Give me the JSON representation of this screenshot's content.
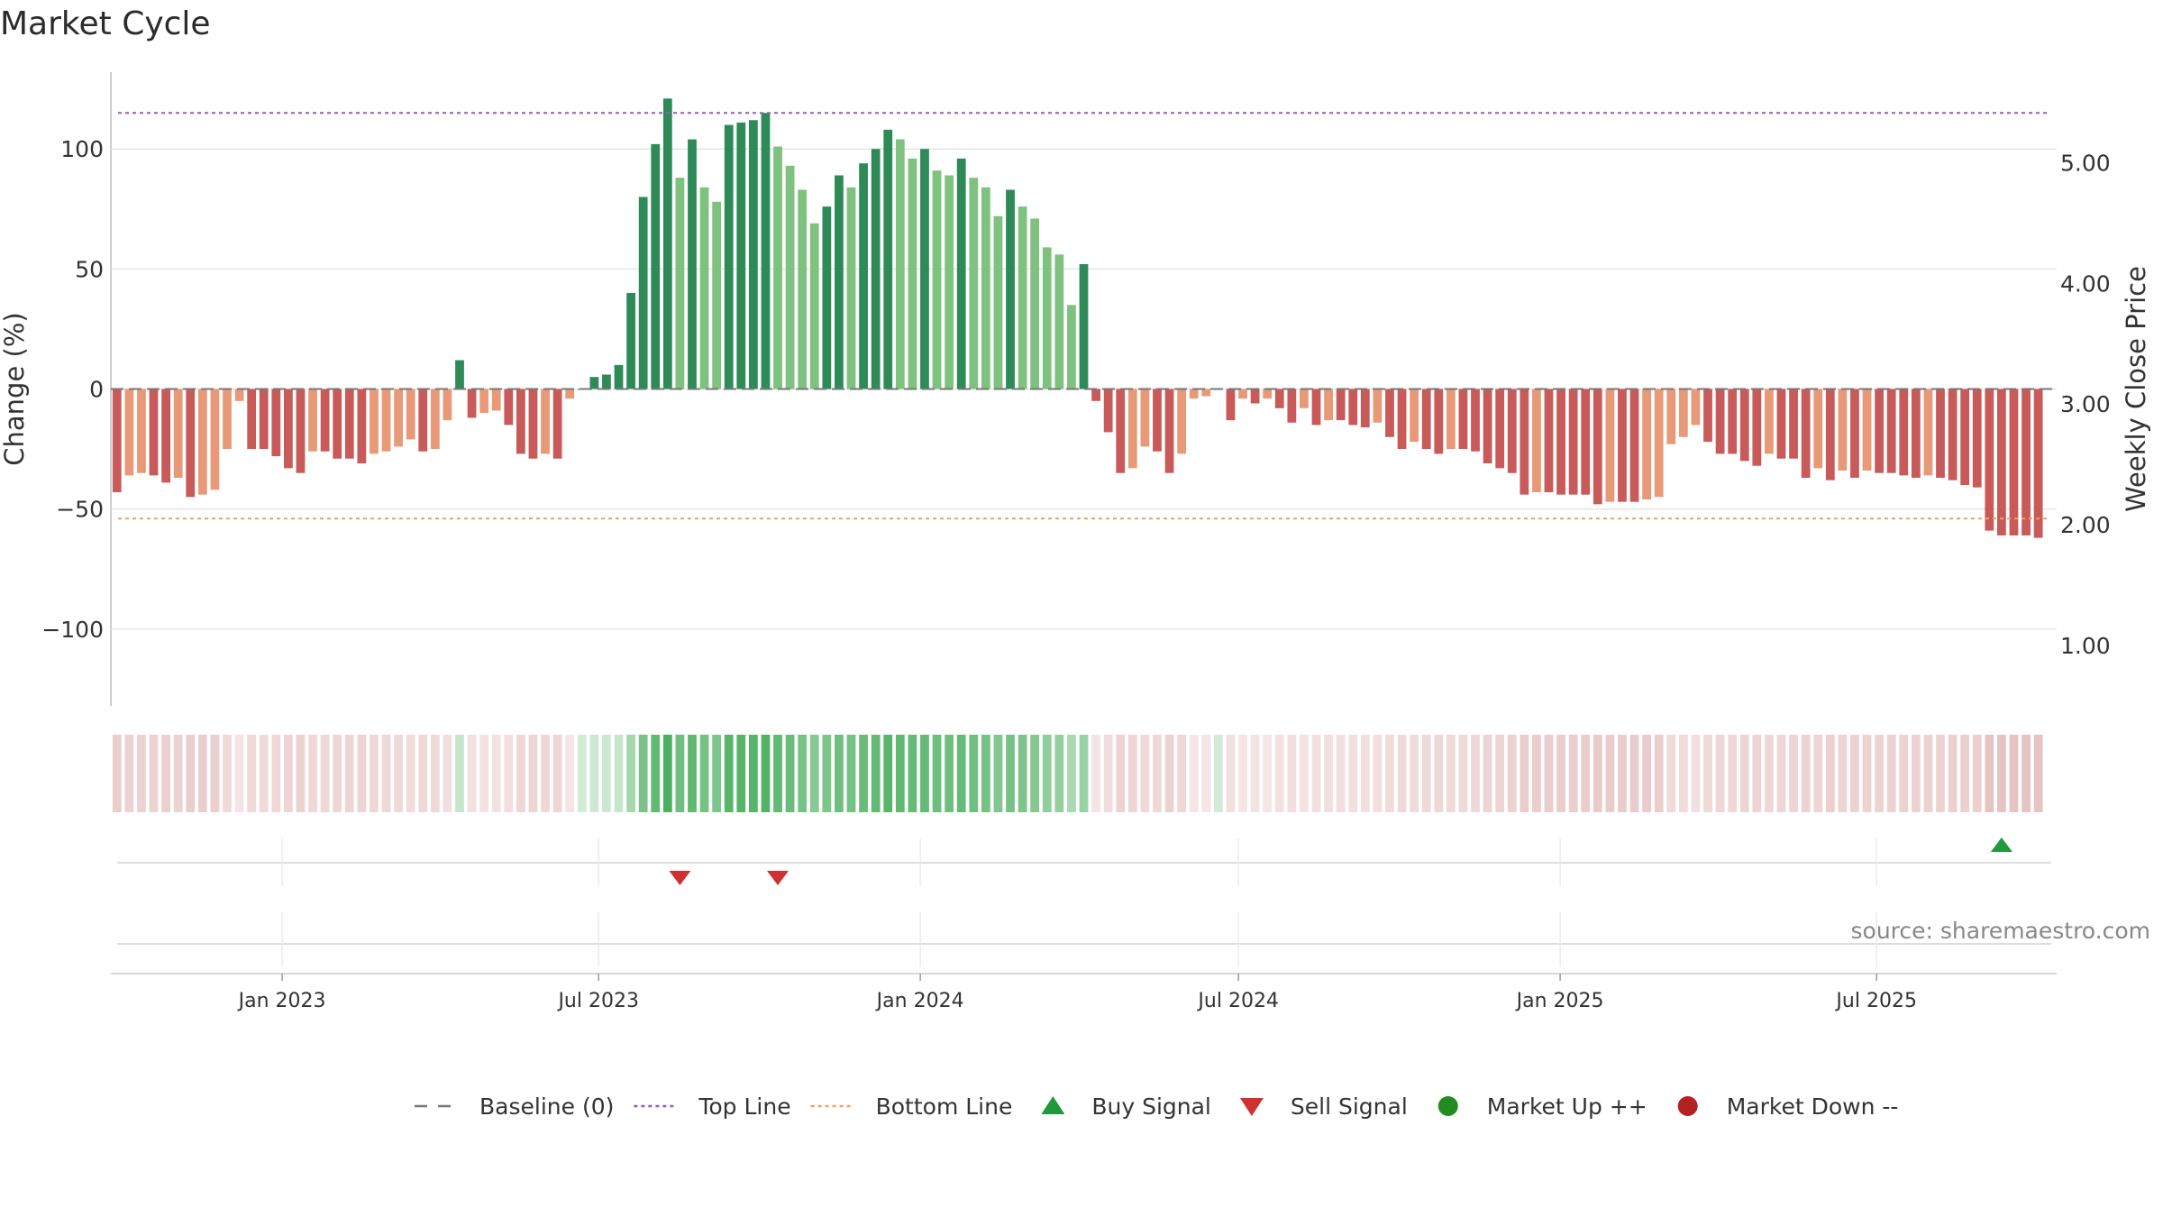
{
  "title": "Market Cycle",
  "source": "source: sharemaestro.com",
  "chart_data": {
    "type": "bar",
    "ylabel_left": "Change (%)",
    "ylabel_right": "Weekly Close Price",
    "ylim_left": [
      -132,
      132
    ],
    "yticks_left": [
      100,
      50,
      0,
      -50,
      -100
    ],
    "ytick_labels_left": [
      "100",
      "50",
      "0",
      "−50",
      "−100"
    ],
    "ylim_right": [
      0.5,
      5.75
    ],
    "yticks_right": [
      5,
      4,
      3,
      2,
      1
    ],
    "ytick_labels_right": [
      "5.00",
      "4.00",
      "3.00",
      "2.00",
      "1.00"
    ],
    "top_line": 115,
    "bottom_line": -54,
    "x_start": "2022-09-25",
    "x_end": "2025-10-12",
    "xticks": [
      "2023-01-01",
      "2023-07-01",
      "2024-01-01",
      "2024-07-01",
      "2025-01-01",
      "2025-07-01"
    ],
    "xtick_labels": [
      "Jan 2023",
      "Jul 2023",
      "Jan 2024",
      "Jul 2024",
      "Jan 2025",
      "Jul 2025"
    ],
    "first_week": "2022-09-25",
    "values": [
      -43,
      -36,
      -35,
      -36,
      -39,
      -37,
      -45,
      -44,
      -42,
      -25,
      -5,
      -25,
      -25,
      -28,
      -33,
      -35,
      -26,
      -26,
      -29,
      -29,
      -31,
      -27,
      -26,
      -24,
      -21,
      -26,
      -25,
      -13,
      12,
      -12,
      -10,
      -9,
      -15,
      -27,
      -29,
      -27,
      -29,
      -4,
      0,
      5,
      6,
      10,
      40,
      80,
      102,
      121,
      88,
      104,
      84,
      78,
      110,
      111,
      112,
      115,
      101,
      93,
      83,
      69,
      76,
      89,
      84,
      94,
      100,
      108,
      104,
      96,
      100,
      91,
      89,
      96,
      88,
      84,
      72,
      83,
      76,
      71,
      59,
      56,
      35,
      52,
      -5,
      -18,
      -35,
      -33,
      -24,
      -26,
      -35,
      -27,
      -4,
      -3,
      0,
      -13,
      -4,
      -6,
      -4,
      -8,
      -14,
      -8,
      -15,
      -13,
      -13,
      -15,
      -16,
      -14,
      -20,
      -25,
      -22,
      -25,
      -27,
      -25,
      -25,
      -26,
      -31,
      -33,
      -35,
      -44,
      -43,
      -43,
      -44,
      -44,
      -44,
      -48,
      -47,
      -47,
      -47,
      -46,
      -45,
      -23,
      -20,
      -15,
      -22,
      -27,
      -27,
      -30,
      -32,
      -27,
      -29,
      -29,
      -37,
      -33,
      -38,
      -34,
      -37,
      -34,
      -35,
      -35,
      -36,
      -37,
      -36,
      -37,
      -38,
      -40,
      -41,
      -59,
      -61,
      -61,
      -61,
      -62
    ],
    "bar_colors": {
      "strong_up": "#2e8b57",
      "weak_up": "#7fc27f",
      "strong_down": "#c85a5a",
      "weak_down": "#e89a78"
    },
    "strength_band_colors": {
      "up": "#4caf60",
      "down": "#d9a0a0"
    },
    "buy_signals": [
      "2025-09-07"
    ],
    "sell_signals": [
      "2023-08-13",
      "2023-10-08"
    ],
    "legend": [
      {
        "label": "Baseline (0)",
        "marker": "dash",
        "color": "#777777"
      },
      {
        "label": "Top Line",
        "marker": "dotted",
        "color": "#9b59b6"
      },
      {
        "label": "Bottom Line",
        "marker": "dotted",
        "color": "#f0a060"
      },
      {
        "label": "Buy Signal",
        "marker": "triangle-up",
        "color": "#1f9a3a"
      },
      {
        "label": "Sell Signal",
        "marker": "triangle-down",
        "color": "#d03030"
      },
      {
        "label": "Market Up ++",
        "marker": "circle",
        "color": "#228b22"
      },
      {
        "label": "Market Down --",
        "marker": "circle",
        "color": "#b22222"
      }
    ]
  }
}
